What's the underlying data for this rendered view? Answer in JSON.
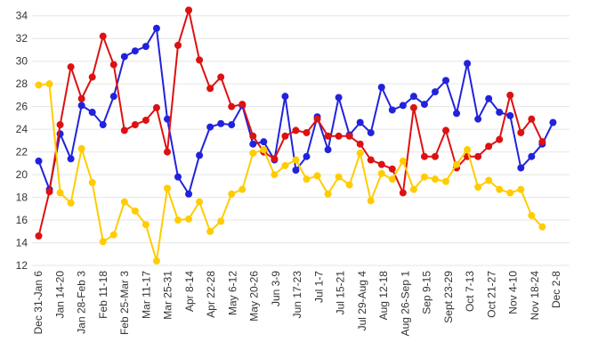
{
  "chart_data": {
    "type": "line",
    "title": "",
    "xlabel": "",
    "ylabel": "",
    "ylim": [
      12,
      35
    ],
    "yticks": [
      12,
      14,
      16,
      18,
      20,
      22,
      24,
      26,
      28,
      30,
      32,
      34
    ],
    "grid": "horizontal",
    "legend": "none",
    "x_tick_labels": [
      "Dec 31-Jan 6",
      "Jan 14-20",
      "Jan 28-Feb 3",
      "Feb 11-18",
      "Feb 25-Mar 3",
      "Mar 11-17",
      "Mar 25-31",
      "Apr 8-14",
      "Apr 22-28",
      "May 6-12",
      "May 20-26",
      "Jun 3-9",
      "Jun 17-23",
      "Jul 1-7",
      "Jul 15-21",
      "Jul 29-Aug 4",
      "Aug 12-18",
      "Aug 26-Sep 1",
      "Sep 9-15",
      "Sept 23-29",
      "Oct 7-13",
      "Oct 21-27",
      "Nov 4-10",
      "Nov 18-24",
      "Dec 2-8"
    ],
    "series": [
      {
        "color": "#2222dd",
        "values": [
          21.2,
          18.7,
          23.6,
          21.4,
          26.1,
          25.5,
          24.4,
          26.9,
          30.4,
          30.9,
          31.3,
          32.9,
          24.9,
          19.8,
          18.3,
          21.7,
          24.2,
          24.5,
          24.4,
          26.1,
          22.7,
          22.9,
          21.3,
          26.9,
          20.4,
          21.6,
          25.1,
          22.2,
          26.8,
          23.5,
          24.6,
          23.7,
          27.7,
          25.7,
          26.1,
          26.9,
          26.2,
          27.3,
          28.3,
          25.4,
          29.8,
          24.9,
          26.7,
          25.5,
          25.2,
          20.6,
          21.6,
          22.7,
          24.6
        ]
      },
      {
        "color": "#dd1111",
        "values": [
          14.6,
          18.5,
          24.4,
          29.5,
          26.7,
          28.6,
          32.2,
          29.7,
          23.9,
          24.4,
          24.8,
          25.9,
          22.0,
          31.4,
          34.5,
          30.1,
          27.6,
          28.6,
          26.0,
          26.2,
          23.4,
          22.0,
          21.4,
          23.4,
          23.9,
          23.7,
          24.9,
          23.4,
          23.4,
          23.4,
          22.7,
          21.3,
          20.9,
          20.5,
          18.4,
          25.9,
          21.6,
          21.6,
          23.9,
          20.6,
          21.6,
          21.6,
          22.5,
          23.1,
          27.0,
          23.7,
          24.9,
          22.9
        ]
      },
      {
        "color": "#ffcc00",
        "values": [
          27.9,
          28.0,
          18.4,
          17.5,
          22.3,
          19.3,
          14.1,
          14.7,
          17.6,
          16.8,
          15.6,
          12.4,
          18.8,
          16.0,
          16.1,
          17.6,
          15.0,
          15.9,
          18.3,
          18.7,
          21.9,
          22.2,
          20.0,
          20.8,
          21.3,
          19.6,
          19.9,
          18.3,
          19.8,
          19.1,
          21.9,
          17.7,
          20.1,
          19.6,
          21.2,
          18.7,
          19.8,
          19.6,
          19.4,
          20.9,
          22.2,
          18.9,
          19.5,
          18.7,
          18.4,
          18.7,
          16.4,
          15.4
        ]
      }
    ]
  }
}
